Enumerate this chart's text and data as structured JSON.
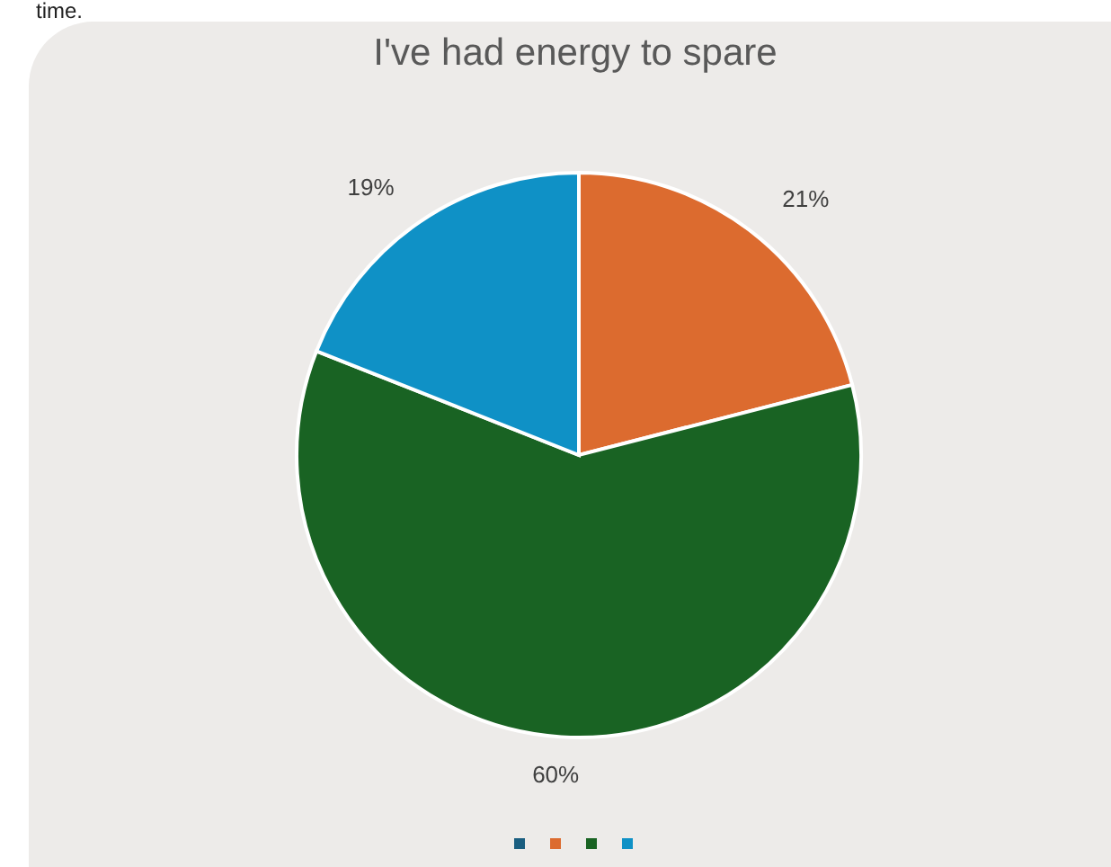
{
  "chart_data": {
    "type": "pie",
    "title": "I've had energy to spare",
    "annotations": [
      "time."
    ],
    "categories": [
      null,
      null,
      null,
      null
    ],
    "values": [
      0,
      21,
      60,
      19
    ],
    "value_labels": [
      null,
      "21%",
      "60%",
      "19%"
    ],
    "colors": [
      "#1a5e80",
      "#dc6b2f",
      "#196323",
      "#0f91c6"
    ]
  }
}
